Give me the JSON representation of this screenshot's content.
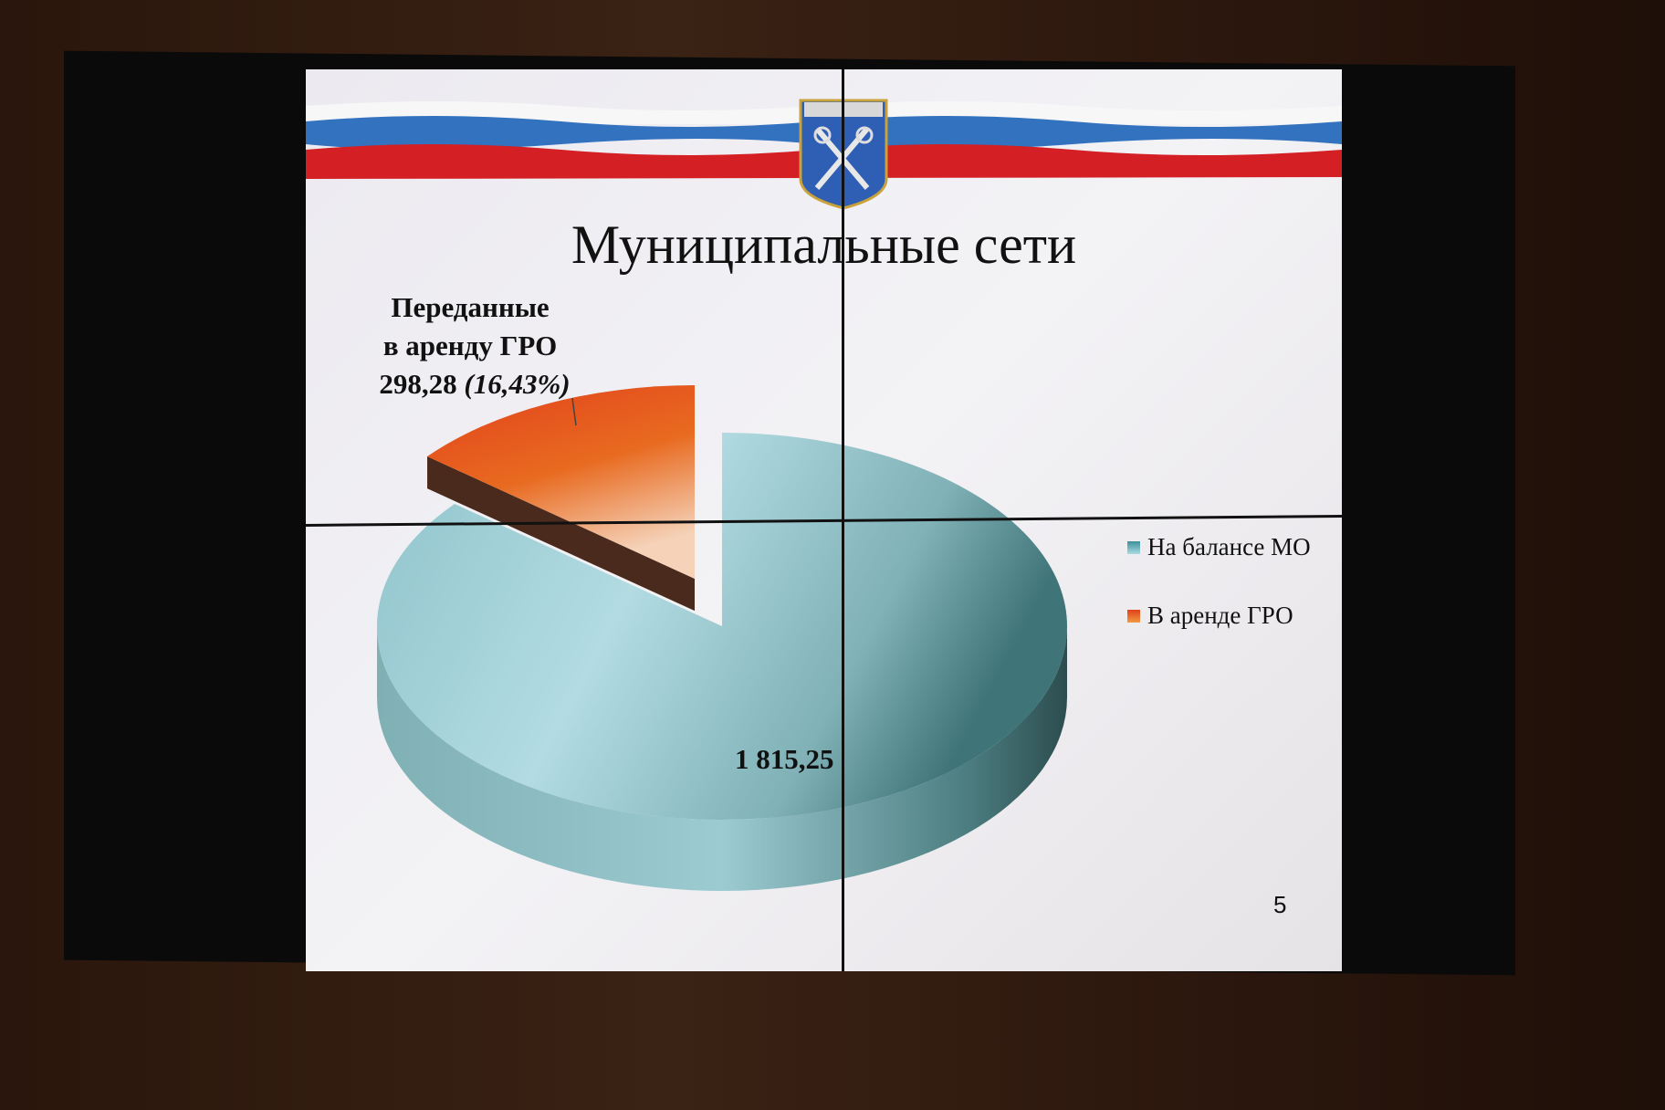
{
  "slide": {
    "title": "Муниципальные сети",
    "page_number": "5",
    "flag_colors": [
      "#ffffff",
      "#2f6fc0",
      "#d81e22"
    ]
  },
  "chart_data": {
    "type": "pie",
    "style": "3d-exploded",
    "title": "Муниципальные сети",
    "slices": [
      {
        "name": "На балансе МО",
        "value": 1815.25,
        "label": "1 815,25",
        "color": "#6fb0b8"
      },
      {
        "name": "В аренде ГРО",
        "value": 298.28,
        "percent": 16.43,
        "color": "#e0501c",
        "exploded": true,
        "label_lines": [
          "Переданные",
          "в аренду ГРО",
          "298,28 "
        ],
        "label_percent": "(16,43%)"
      }
    ],
    "legend": {
      "placement": "right",
      "entries": [
        "На балансе МО",
        "В аренде ГРО"
      ]
    }
  }
}
